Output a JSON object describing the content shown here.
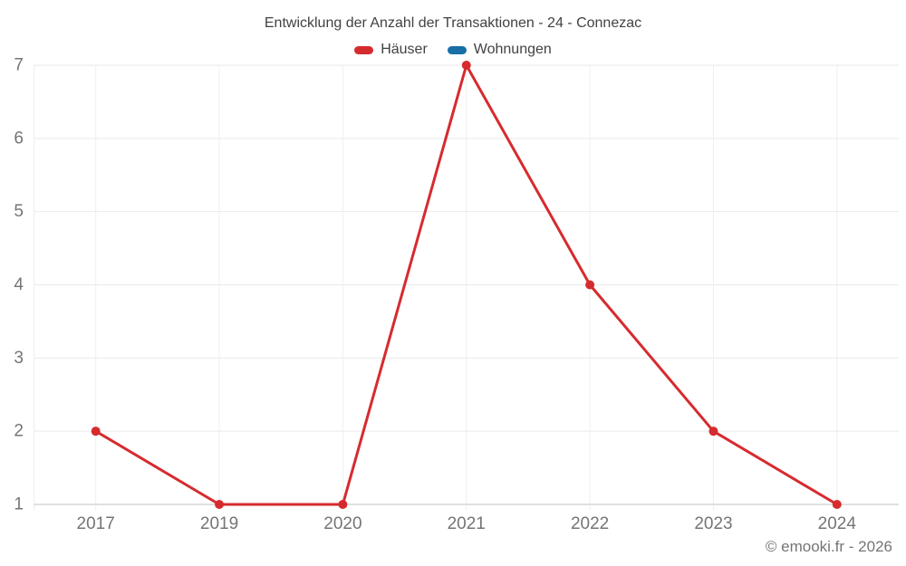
{
  "chart_data": {
    "type": "line",
    "title": "Entwicklung der Anzahl der Transaktionen - 24 - Connezac",
    "categories": [
      "2017",
      "2019",
      "2020",
      "2021",
      "2022",
      "2023",
      "2024"
    ],
    "series": [
      {
        "name": "Häuser",
        "color": "#d62b2e",
        "values": [
          2,
          1,
          1,
          7,
          4,
          2,
          1
        ]
      },
      {
        "name": "Wohnungen",
        "color": "#176fa6",
        "values": [
          null,
          null,
          null,
          null,
          null,
          null,
          null
        ]
      }
    ],
    "xlabel": "",
    "ylabel": "",
    "ylim": [
      1,
      7
    ],
    "yticks": [
      1,
      2,
      3,
      4,
      5,
      6,
      7
    ],
    "grid": true,
    "legend_position": "top"
  },
  "footer": {
    "copyright": "© emooki.fr - 2026"
  },
  "theme": {
    "background": "#ffffff",
    "title_color": "#424242",
    "label_color": "#757575",
    "h_gridline_color": "#e9e9e9",
    "v_gridline_color": "#efefef",
    "axis_color": "#d6d6d6"
  }
}
